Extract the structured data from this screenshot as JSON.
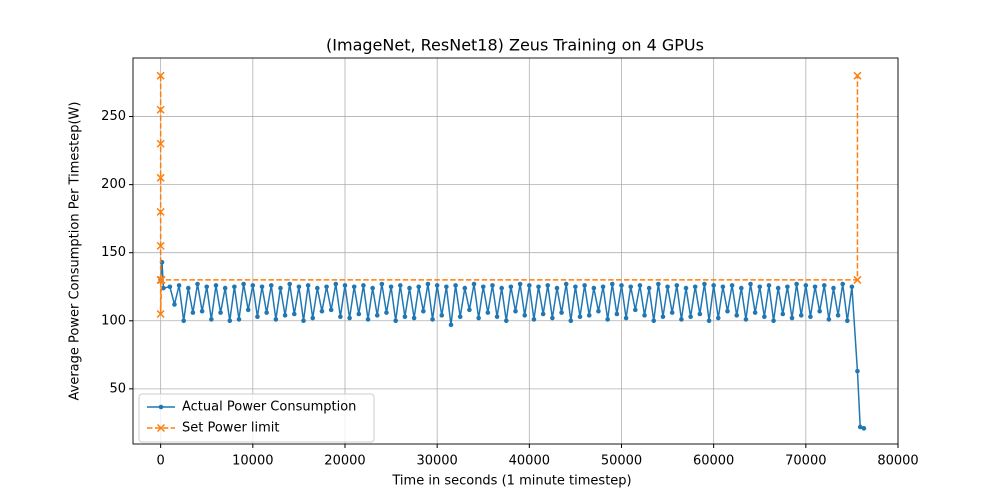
{
  "chart_data": {
    "type": "line",
    "title": "(ImageNet, ResNet18) Zeus Training on 4 GPUs",
    "xlabel": "Time in seconds (1 minute timestep)",
    "ylabel": "Average Power Consumption Per Timestep(W)",
    "xlim": [
      -3000,
      80000
    ],
    "ylim": [
      9.5,
      293
    ],
    "xticks": [
      0,
      10000,
      20000,
      30000,
      40000,
      50000,
      60000,
      70000,
      80000
    ],
    "yticks": [
      50,
      100,
      150,
      200,
      250
    ],
    "grid": true,
    "legend": "lower left",
    "series": [
      {
        "name": "Actual Power Consumption",
        "color": "#1f77b4",
        "marker": "dot",
        "dashed": false,
        "x": [
          0,
          150,
          300,
          1000,
          1500,
          2000,
          2500,
          3000,
          3500,
          4000,
          4500,
          5000,
          5500,
          6000,
          6500,
          7000,
          7500,
          8000,
          8500,
          9000,
          9500,
          10000,
          10500,
          11000,
          11500,
          12000,
          12500,
          13000,
          13500,
          14000,
          14500,
          15000,
          15500,
          16000,
          16500,
          17000,
          17500,
          18000,
          18500,
          19000,
          19500,
          20000,
          20500,
          21000,
          21500,
          22000,
          22500,
          23000,
          23500,
          24000,
          24500,
          25000,
          25500,
          26000,
          26500,
          27000,
          27500,
          28000,
          28500,
          29000,
          29500,
          30000,
          30500,
          31000,
          31500,
          32000,
          32500,
          33000,
          33500,
          34000,
          34500,
          35000,
          35500,
          36000,
          36500,
          37000,
          37500,
          38000,
          38500,
          39000,
          39500,
          40000,
          40500,
          41000,
          41500,
          42000,
          42500,
          43000,
          43500,
          44000,
          44500,
          45000,
          45500,
          46000,
          46500,
          47000,
          47500,
          48000,
          48500,
          49000,
          49500,
          50000,
          50500,
          51000,
          51500,
          52000,
          52500,
          53000,
          53500,
          54000,
          54500,
          55000,
          55500,
          56000,
          56500,
          57000,
          57500,
          58000,
          58500,
          59000,
          59500,
          60000,
          60500,
          61000,
          61500,
          62000,
          62500,
          63000,
          63500,
          64000,
          64500,
          65000,
          65500,
          66000,
          66500,
          67000,
          67500,
          68000,
          68500,
          69000,
          69500,
          70000,
          70500,
          71000,
          71500,
          72000,
          72500,
          73000,
          73500,
          74000,
          74500,
          75000,
          75600,
          75900,
          76300
        ],
        "values": [
          130,
          143,
          124,
          125,
          112,
          126,
          100,
          124,
          106,
          127,
          107,
          125,
          101,
          126,
          106,
          124,
          100,
          125,
          101,
          127,
          108,
          126,
          103,
          125,
          106,
          126,
          101,
          124,
          104,
          127,
          105,
          125,
          100,
          126,
          102,
          124,
          107,
          125,
          108,
          127,
          103,
          126,
          102,
          125,
          105,
          126,
          101,
          124,
          104,
          127,
          106,
          125,
          100,
          126,
          103,
          124,
          102,
          125,
          107,
          127,
          101,
          126,
          104,
          125,
          97,
          126,
          103,
          124,
          108,
          127,
          102,
          125,
          106,
          126,
          103,
          124,
          100,
          125,
          107,
          127,
          104,
          126,
          101,
          125,
          105,
          126,
          102,
          124,
          106,
          127,
          100,
          125,
          103,
          126,
          104,
          124,
          107,
          125,
          101,
          127,
          105,
          126,
          102,
          125,
          108,
          126,
          104,
          124,
          100,
          127,
          103,
          125,
          106,
          126,
          101,
          124,
          103,
          125,
          105,
          127,
          100,
          126,
          102,
          125,
          107,
          126,
          104,
          124,
          101,
          127,
          106,
          125,
          103,
          126,
          100,
          124,
          105,
          125,
          102,
          127,
          104,
          126,
          103,
          125,
          107,
          126,
          101,
          124,
          104,
          127,
          100,
          125,
          63,
          22,
          21
        ]
      },
      {
        "name": "Set Power limit",
        "color": "#ff7f0e",
        "marker": "x",
        "dashed": true,
        "x": [
          0,
          0,
          0,
          0,
          0,
          0,
          0,
          0,
          100,
          75600,
          75600
        ],
        "values": [
          280,
          255,
          230,
          205,
          180,
          155,
          130,
          105,
          130,
          130,
          280
        ]
      }
    ]
  }
}
